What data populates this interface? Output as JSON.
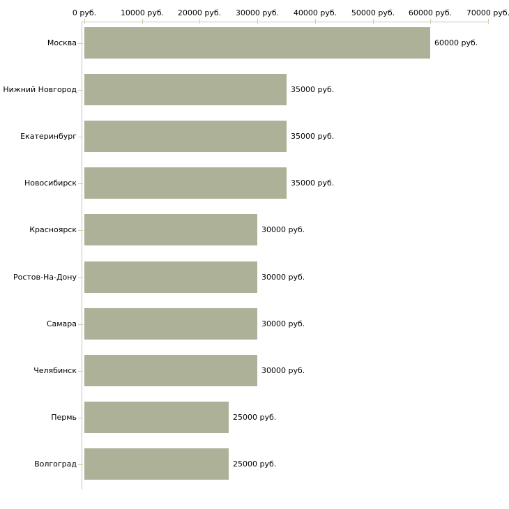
{
  "chart_data": {
    "type": "bar",
    "orientation": "horizontal",
    "title": "",
    "unit": "руб.",
    "categories": [
      "Москва",
      "Нижний Новгород",
      "Екатеринбург",
      "Новосибирск",
      "Красноярск",
      "Ростов-На-Дону",
      "Самара",
      "Челябинск",
      "Пермь",
      "Волгоград"
    ],
    "values": [
      60000,
      35000,
      35000,
      35000,
      30000,
      30000,
      30000,
      30000,
      25000,
      25000
    ],
    "value_labels": [
      "60000 руб.",
      "35000 руб.",
      "35000 руб.",
      "35000 руб.",
      "30000 руб.",
      "30000 руб.",
      "30000 руб.",
      "30000 руб.",
      "25000 руб.",
      "25000 руб."
    ],
    "x_axis": {
      "position": "top",
      "min": 0,
      "max": 70000,
      "step": 10000,
      "tick_labels": [
        "0 руб.",
        "10000 руб.",
        "20000 руб.",
        "30000 руб.",
        "40000 руб.",
        "50000 руб.",
        "60000 руб.",
        "70000 руб."
      ]
    },
    "colors": {
      "bar": "#adb198",
      "axis_line": "#c2c2c2",
      "tick": "#d0d0a2",
      "text": "#000000",
      "background": "#ffffff"
    },
    "grid": false,
    "legend": false
  }
}
